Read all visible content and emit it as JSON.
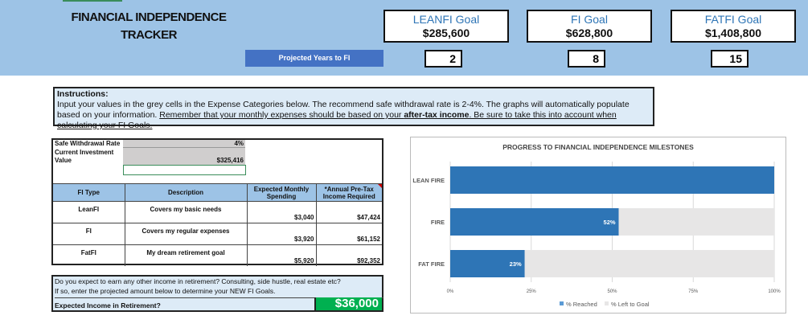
{
  "header": {
    "title_line1": "FINANCIAL INDEPENDENCE",
    "title_line2": "TRACKER",
    "goals": [
      {
        "label": "LEANFI Goal",
        "value": "$285,600",
        "years": "2"
      },
      {
        "label": "FI Goal",
        "value": "$628,800",
        "years": "8"
      },
      {
        "label": "FATFI Goal",
        "value": "$1,408,800",
        "years": "15"
      }
    ],
    "projected_label": "Projected Years to FI"
  },
  "instructions": {
    "heading": "Instructions:",
    "text1": "Input your values in the grey cells in the Expense Categories below. The recommend safe withdrawal rate is 2-4%. The graphs will automatically populate based on your information. ",
    "underline1": "Remember that your monthly expenses should be based on your ",
    "bold": "after-tax income",
    "underline2": ". Be sure to take this into account when calculating your FI Goals."
  },
  "inputs": {
    "swr_label": "Safe Withdrawal Rate",
    "swr_value": "4%",
    "civ_label": "Current Investment Value",
    "civ_value": "$325,416"
  },
  "table": {
    "headers": [
      "FI Type",
      "Description",
      "Expected Monthly Spending",
      "*Annual Pre-Tax Income Required"
    ],
    "rows": [
      {
        "type": "LeanFI",
        "desc": "Covers my basic needs",
        "monthly": "$3,040",
        "annual": "$47,424"
      },
      {
        "type": "FI",
        "desc": "Covers my regular expenses",
        "monthly": "$3,920",
        "annual": "$61,152"
      },
      {
        "type": "FatFI",
        "desc": "My dream retirement goal",
        "monthly": "$5,920",
        "annual": "$92,352"
      }
    ]
  },
  "other_income": {
    "line1": "Do you expect to earn any other income in retirement? Consulting, side hustle, real estate etc?",
    "line2": "If so, enter the projected amount below to determine your NEW FI Goals.",
    "label": "Expected Income in Retirement?",
    "value": "$36,000"
  },
  "colors": {
    "reached": "#2e75b6",
    "left": "#e7e6e6",
    "accent_green": "#00b050",
    "header_blue": "#9dc3e6"
  },
  "chart_data": {
    "type": "bar",
    "orientation": "horizontal",
    "stacked": true,
    "title": "PROGRESS TO FINANCIAL INDEPENDENCE MILESTONES",
    "categories": [
      "LEAN FIRE",
      "FIRE",
      "FAT FIRE"
    ],
    "series": [
      {
        "name": "% Reached",
        "values": [
          100,
          52,
          23
        ]
      },
      {
        "name": "% Left to Goal",
        "values": [
          0,
          48,
          77
        ]
      }
    ],
    "data_labels": [
      "",
      "52%",
      "23%"
    ],
    "xlim": [
      0,
      100
    ],
    "xticks": [
      "0%",
      "25%",
      "50%",
      "75%",
      "100%"
    ],
    "grid": true,
    "legend": "bottom"
  }
}
